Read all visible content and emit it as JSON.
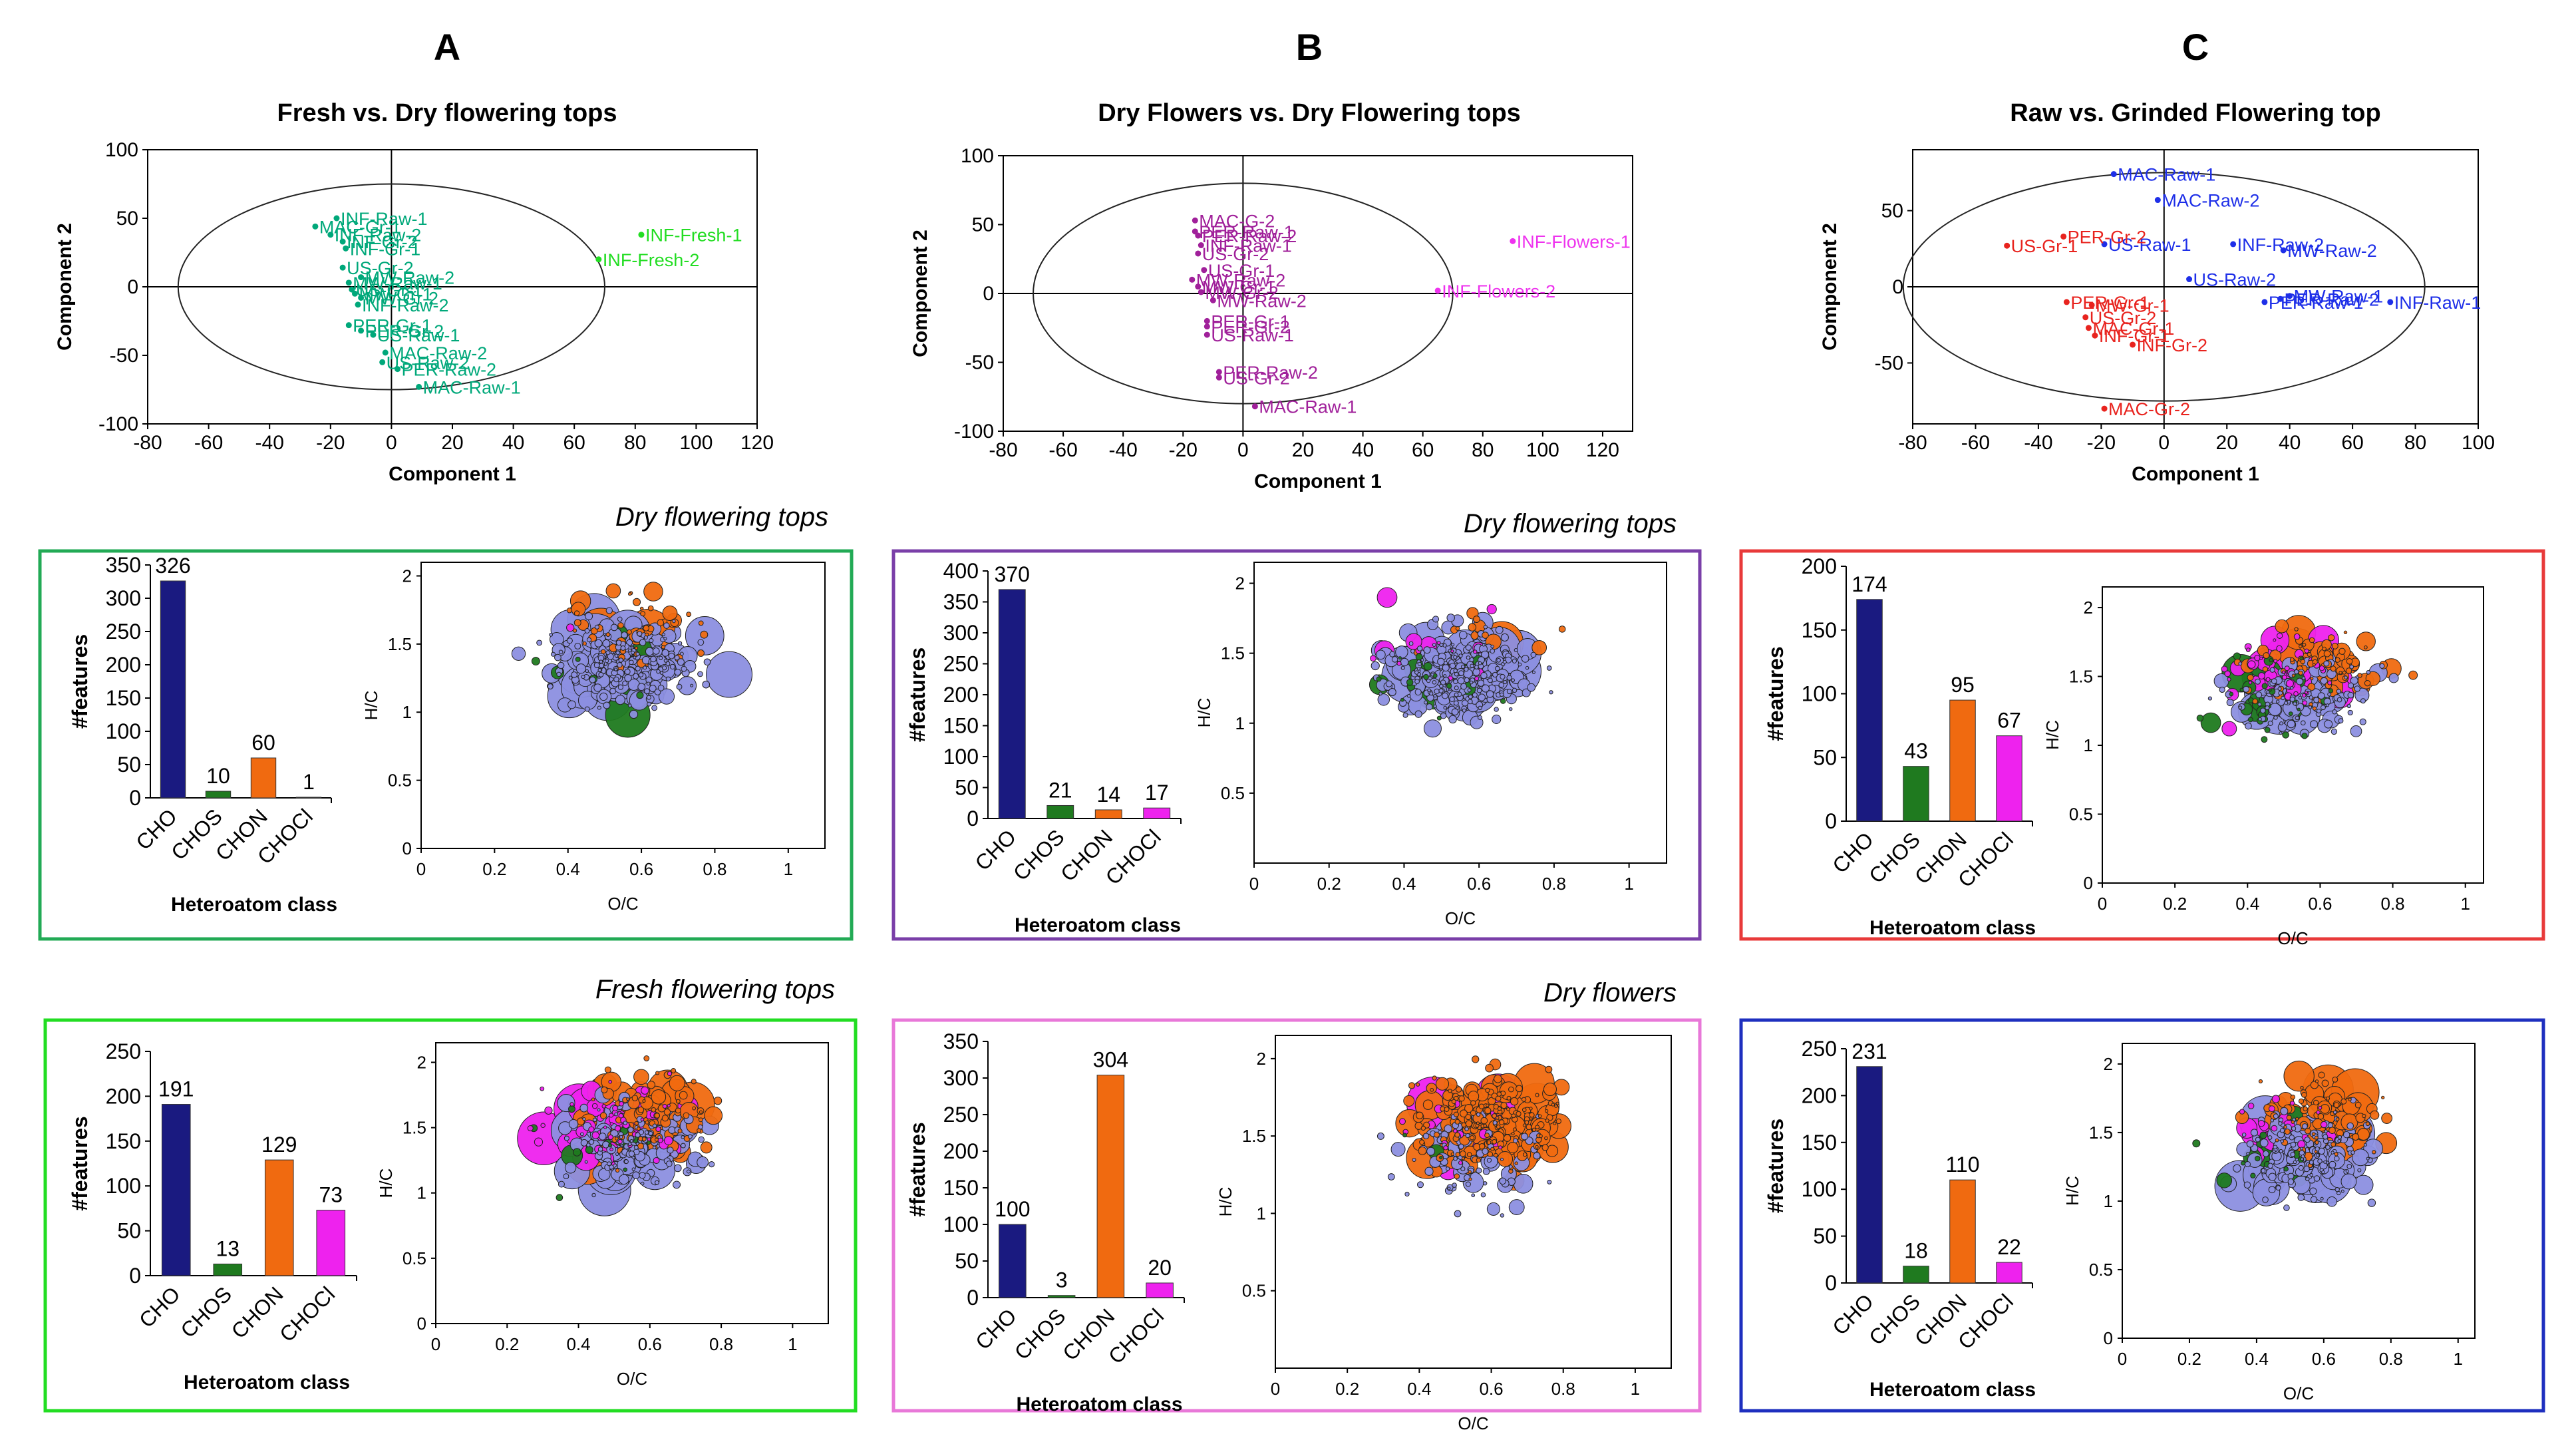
{
  "figure": {
    "columns": [
      {
        "letter": "A",
        "title": "Fresh vs. Dry flowering tops",
        "color": "#00A87A"
      },
      {
        "letter": "B",
        "title": "Dry Flowers vs. Dry Flowering tops",
        "color": "#A0209A"
      },
      {
        "letter": "C",
        "title": "Raw vs. Grinded Flowering top",
        "color": "#E8231E"
      }
    ],
    "panel_titles": {
      "A_mid": "Dry flowering tops",
      "A_bot": "Fresh flowering tops",
      "B_mid": "Dry flowering tops",
      "B_bot": "Dry flowers"
    },
    "box_colors": {
      "A_mid": "#22AA55",
      "A_bot": "#22DD22",
      "B_mid": "#7A3FA8",
      "B_bot": "#E878D8",
      "C_mid": "#E83A3A",
      "C_bot": "#1E2FBF"
    },
    "class_colors": {
      "CHO": "#1A1A80",
      "CHOS": "#1F7A1F",
      "CHON": "#F06A10",
      "CHOCl": "#EE22EE",
      "bubble": "#8C8FE0"
    }
  },
  "chart_data": [
    {
      "id": "pca_A",
      "type": "scatter",
      "xlabel": "Component 1",
      "ylabel": "Component 2",
      "xlim": [
        -80,
        120
      ],
      "ylim": [
        -100,
        100
      ],
      "xticks": [
        -80,
        -60,
        -40,
        -20,
        0,
        20,
        40,
        60,
        80,
        100,
        120
      ],
      "yticks": [
        -100,
        -50,
        0,
        50,
        100
      ],
      "ellipse": {
        "cx": 0,
        "cy": 0,
        "rx": 70,
        "ry": 75
      },
      "points": [
        {
          "x": -18,
          "y": 50,
          "label": "INF-Raw-1",
          "color": "#00A87A"
        },
        {
          "x": -25,
          "y": 44,
          "label": "MAC-Gr-1",
          "color": "#00A87A"
        },
        {
          "x": -20,
          "y": 38,
          "label": "INF-Raw-2",
          "color": "#00A87A"
        },
        {
          "x": -16,
          "y": 33,
          "label": "INF-Gr-2",
          "color": "#00A87A"
        },
        {
          "x": -15,
          "y": 28,
          "label": "INF-Gr-1",
          "color": "#00A87A"
        },
        {
          "x": -16,
          "y": 14,
          "label": "US-Gr-2",
          "color": "#00A87A"
        },
        {
          "x": -10,
          "y": 7,
          "label": "MW-Raw-2",
          "color": "#00A87A"
        },
        {
          "x": -14,
          "y": 3,
          "label": "MW-Raw-1",
          "color": "#00A87A"
        },
        {
          "x": -13,
          "y": -2,
          "label": "US-Gr-1",
          "color": "#00A87A"
        },
        {
          "x": -12,
          "y": -5,
          "label": "MW-Gr-1",
          "color": "#00A87A"
        },
        {
          "x": -10,
          "y": -8,
          "label": "MW-Gr-2",
          "color": "#00A87A"
        },
        {
          "x": -11,
          "y": -13,
          "label": "INF-Raw-2",
          "color": "#00A87A"
        },
        {
          "x": -14,
          "y": -28,
          "label": "PER-Gr-1",
          "color": "#00A87A"
        },
        {
          "x": -10,
          "y": -32,
          "label": "PER-Gr-2",
          "color": "#00A87A"
        },
        {
          "x": -6,
          "y": -35,
          "label": "US-Raw-1",
          "color": "#00A87A"
        },
        {
          "x": -2,
          "y": -48,
          "label": "MAC-Raw-2",
          "color": "#00A87A"
        },
        {
          "x": -3,
          "y": -55,
          "label": "US-Raw-2",
          "color": "#00A87A"
        },
        {
          "x": 2,
          "y": -60,
          "label": "PER-Raw-2",
          "color": "#00A87A"
        },
        {
          "x": 9,
          "y": -73,
          "label": "MAC-Raw-1",
          "color": "#00A87A"
        },
        {
          "x": 82,
          "y": 38,
          "label": "INF-Fresh-1",
          "color": "#22DD22"
        },
        {
          "x": 68,
          "y": 20,
          "label": "INF-Fresh-2",
          "color": "#22DD22"
        }
      ]
    },
    {
      "id": "pca_B",
      "type": "scatter",
      "xlabel": "Component 1",
      "ylabel": "Component 2",
      "xlim": [
        -80,
        130
      ],
      "ylim": [
        -100,
        100
      ],
      "xticks": [
        -80,
        -60,
        -40,
        -20,
        0,
        20,
        40,
        60,
        80,
        100,
        120
      ],
      "yticks": [
        -100,
        -50,
        0,
        50,
        100
      ],
      "ellipse": {
        "cx": 0,
        "cy": 0,
        "rx": 70,
        "ry": 80
      },
      "points": [
        {
          "x": -16,
          "y": 53,
          "label": "MAC-G-2",
          "color": "#A0209A"
        },
        {
          "x": -16,
          "y": 45,
          "label": "PER-Raw-1",
          "color": "#A0209A"
        },
        {
          "x": -15,
          "y": 42,
          "label": "PER-Raw-2",
          "color": "#A0209A"
        },
        {
          "x": -14,
          "y": 35,
          "label": "INF-Raw-1",
          "color": "#A0209A"
        },
        {
          "x": -15,
          "y": 29,
          "label": "US-Gr-2",
          "color": "#A0209A"
        },
        {
          "x": -13,
          "y": 17,
          "label": "US-Gr-1",
          "color": "#A0209A"
        },
        {
          "x": -17,
          "y": 10,
          "label": "MW-Raw-2",
          "color": "#A0209A"
        },
        {
          "x": -15,
          "y": 5,
          "label": "MW-Gr-1",
          "color": "#A0209A"
        },
        {
          "x": -14,
          "y": 1,
          "label": "MW-Gr-2",
          "color": "#A0209A"
        },
        {
          "x": -10,
          "y": -5,
          "label": "MW-Raw-2",
          "color": "#A0209A"
        },
        {
          "x": -12,
          "y": -20,
          "label": "PER-Gr-1",
          "color": "#A0209A"
        },
        {
          "x": -12,
          "y": -24,
          "label": "PER-Gr-2",
          "color": "#A0209A"
        },
        {
          "x": -12,
          "y": -30,
          "label": "US-Raw-1",
          "color": "#A0209A"
        },
        {
          "x": -8,
          "y": -57,
          "label": "PER-Raw-2",
          "color": "#A0209A"
        },
        {
          "x": -8,
          "y": -61,
          "label": "US-Gr-2",
          "color": "#A0209A"
        },
        {
          "x": 4,
          "y": -82,
          "label": "MAC-Raw-1",
          "color": "#A0209A"
        },
        {
          "x": 90,
          "y": 38,
          "label": "INF-Flowers-1",
          "color": "#EE33EE"
        },
        {
          "x": 65,
          "y": 2,
          "label": "INF-Flowers-2",
          "color": "#EE33EE"
        }
      ]
    },
    {
      "id": "pca_C",
      "type": "scatter",
      "xlabel": "Component 1",
      "ylabel": "Component 2",
      "xlim": [
        -80,
        100
      ],
      "ylim": [
        -90,
        90
      ],
      "xticks": [
        -80,
        -60,
        -40,
        -20,
        0,
        20,
        40,
        60,
        80,
        100
      ],
      "yticks": [
        -50,
        0,
        50
      ],
      "ellipse": {
        "cx": 0,
        "cy": 0,
        "rx": 83,
        "ry": 75
      },
      "points": [
        {
          "x": -16,
          "y": 74,
          "label": "MAC-Raw-1",
          "color": "#1E2FE8"
        },
        {
          "x": -2,
          "y": 57,
          "label": "MAC-Raw-2",
          "color": "#1E2FE8"
        },
        {
          "x": -19,
          "y": 28,
          "label": "US-Raw-1",
          "color": "#1E2FE8"
        },
        {
          "x": 22,
          "y": 28,
          "label": "INF-Raw-2",
          "color": "#1E2FE8"
        },
        {
          "x": 38,
          "y": 24,
          "label": "MW-Raw-2",
          "color": "#1E2FE8"
        },
        {
          "x": 8,
          "y": 5,
          "label": "US-Raw-2",
          "color": "#1E2FE8"
        },
        {
          "x": 40,
          "y": -6,
          "label": "MW-Raw-1",
          "color": "#1E2FE8"
        },
        {
          "x": 32,
          "y": -10,
          "label": "PER-Raw-1",
          "color": "#1E2FE8"
        },
        {
          "x": 37,
          "y": -8,
          "label": "PER-Raw-2",
          "color": "#1E2FE8"
        },
        {
          "x": 72,
          "y": -10,
          "label": "INF-Raw-1",
          "color": "#1E2FE8"
        },
        {
          "x": -32,
          "y": 33,
          "label": "PER-Gr-2",
          "color": "#E8231E"
        },
        {
          "x": -50,
          "y": 27,
          "label": "US-Gr-1",
          "color": "#E8231E"
        },
        {
          "x": -31,
          "y": -10,
          "label": "PER-Gr-1",
          "color": "#E8231E"
        },
        {
          "x": -23,
          "y": -12,
          "label": "MW-Gr-1",
          "color": "#E8231E"
        },
        {
          "x": -25,
          "y": -20,
          "label": "US-Gr-2",
          "color": "#E8231E"
        },
        {
          "x": -24,
          "y": -27,
          "label": "MAC-Gr-1",
          "color": "#E8231E"
        },
        {
          "x": -22,
          "y": -32,
          "label": "INF-Gr-1",
          "color": "#E8231E"
        },
        {
          "x": -10,
          "y": -38,
          "label": "INF-Gr-2",
          "color": "#E8231E"
        },
        {
          "x": -19,
          "y": -80,
          "label": "MAC-Gr-2",
          "color": "#E8231E"
        }
      ]
    },
    {
      "id": "bar_A_mid",
      "type": "bar",
      "categories": [
        "CHO",
        "CHOS",
        "CHON",
        "CHOCl"
      ],
      "values": [
        326,
        10,
        60,
        1
      ],
      "ylim": [
        0,
        350
      ],
      "yticks": [
        0,
        50,
        100,
        150,
        200,
        250,
        300,
        350
      ],
      "xlabel": "Heteroatom class",
      "ylabel": "#features"
    },
    {
      "id": "bar_B_mid",
      "type": "bar",
      "categories": [
        "CHO",
        "CHOS",
        "CHON",
        "CHOCl"
      ],
      "values": [
        370,
        21,
        14,
        17
      ],
      "ylim": [
        0,
        400
      ],
      "yticks": [
        0,
        50,
        100,
        150,
        200,
        250,
        300,
        350,
        400
      ],
      "xlabel": "Heteroatom class",
      "ylabel": "#features"
    },
    {
      "id": "bar_C_mid",
      "type": "bar",
      "categories": [
        "CHO",
        "CHOS",
        "CHON",
        "CHOCl"
      ],
      "values": [
        174,
        43,
        95,
        67
      ],
      "ylim": [
        0,
        200
      ],
      "yticks": [
        0,
        50,
        100,
        150,
        200
      ],
      "xlabel": "Heteroatom class",
      "ylabel": "#features"
    },
    {
      "id": "bar_A_bot",
      "type": "bar",
      "categories": [
        "CHO",
        "CHOS",
        "CHON",
        "CHOCl"
      ],
      "values": [
        191,
        13,
        129,
        73
      ],
      "ylim": [
        0,
        250
      ],
      "yticks": [
        0,
        50,
        100,
        150,
        200,
        250
      ],
      "xlabel": "Heteroatom class",
      "ylabel": "#features"
    },
    {
      "id": "bar_B_bot",
      "type": "bar",
      "categories": [
        "CHO",
        "CHOS",
        "CHON",
        "CHOCl"
      ],
      "values": [
        100,
        3,
        304,
        20
      ],
      "ylim": [
        0,
        350
      ],
      "yticks": [
        0,
        50,
        100,
        150,
        200,
        250,
        300,
        350
      ],
      "xlabel": "Heteroatom class",
      "ylabel": "#features"
    },
    {
      "id": "bar_C_bot",
      "type": "bar",
      "categories": [
        "CHO",
        "CHOS",
        "CHON",
        "CHOCl"
      ],
      "values": [
        231,
        18,
        110,
        22
      ],
      "ylim": [
        0,
        250
      ],
      "yticks": [
        0,
        50,
        100,
        150,
        200,
        250
      ],
      "xlabel": "Heteroatom class",
      "ylabel": "#features"
    },
    {
      "id": "vk_A_mid",
      "type": "scatter",
      "xlabel": "O/C",
      "ylabel": "H/C",
      "xlim": [
        0,
        1.1
      ],
      "ylim": [
        0,
        2.1
      ],
      "xticks": [
        0,
        0.2,
        0.4,
        0.6,
        0.8,
        1
      ],
      "yticks": [
        0,
        0.5,
        1,
        1.5,
        2
      ],
      "counts": {
        "CHO": 326,
        "CHOS": 10,
        "CHON": 60,
        "CHOCl": 1
      }
    },
    {
      "id": "vk_B_mid",
      "type": "scatter",
      "xlabel": "O/C",
      "ylabel": "H/C",
      "xlim": [
        0,
        1.1
      ],
      "ylim": [
        0,
        2.15
      ],
      "xticks": [
        0,
        0.2,
        0.4,
        0.6,
        0.8,
        1
      ],
      "yticks": [
        0.5,
        1,
        1.5,
        2
      ],
      "counts": {
        "CHO": 370,
        "CHOS": 21,
        "CHON": 14,
        "CHOCl": 17
      }
    },
    {
      "id": "vk_C_mid",
      "type": "scatter",
      "xlabel": "O/C",
      "ylabel": "H/C",
      "xlim": [
        0,
        1.05
      ],
      "ylim": [
        0,
        2.15
      ],
      "xticks": [
        0,
        0.2,
        0.4,
        0.6,
        0.8,
        1
      ],
      "yticks": [
        0,
        0.5,
        1,
        1.5,
        2
      ],
      "counts": {
        "CHO": 174,
        "CHOS": 43,
        "CHON": 95,
        "CHOCl": 67
      }
    },
    {
      "id": "vk_A_bot",
      "type": "scatter",
      "xlabel": "O/C",
      "ylabel": "H/C",
      "xlim": [
        0,
        1.1
      ],
      "ylim": [
        0,
        2.15
      ],
      "xticks": [
        0,
        0.2,
        0.4,
        0.6,
        0.8,
        1
      ],
      "yticks": [
        0,
        0.5,
        1,
        1.5,
        2
      ],
      "counts": {
        "CHO": 191,
        "CHOS": 13,
        "CHON": 129,
        "CHOCl": 73
      }
    },
    {
      "id": "vk_B_bot",
      "type": "scatter",
      "xlabel": "O/C",
      "ylabel": "H/C",
      "xlim": [
        0,
        1.1
      ],
      "ylim": [
        0,
        2.15
      ],
      "xticks": [
        0,
        0.2,
        0.4,
        0.6,
        0.8,
        1
      ],
      "yticks": [
        0.5,
        1,
        1.5,
        2
      ],
      "counts": {
        "CHO": 100,
        "CHOS": 3,
        "CHON": 304,
        "CHOCl": 20
      }
    },
    {
      "id": "vk_C_bot",
      "type": "scatter",
      "xlabel": "O/C",
      "ylabel": "H/C",
      "xlim": [
        0,
        1.05
      ],
      "ylim": [
        0,
        2.15
      ],
      "xticks": [
        0,
        0.2,
        0.4,
        0.6,
        0.8,
        1
      ],
      "yticks": [
        0,
        0.5,
        1,
        1.5,
        2
      ],
      "counts": {
        "CHO": 231,
        "CHOS": 18,
        "CHON": 110,
        "CHOCl": 22
      }
    }
  ]
}
